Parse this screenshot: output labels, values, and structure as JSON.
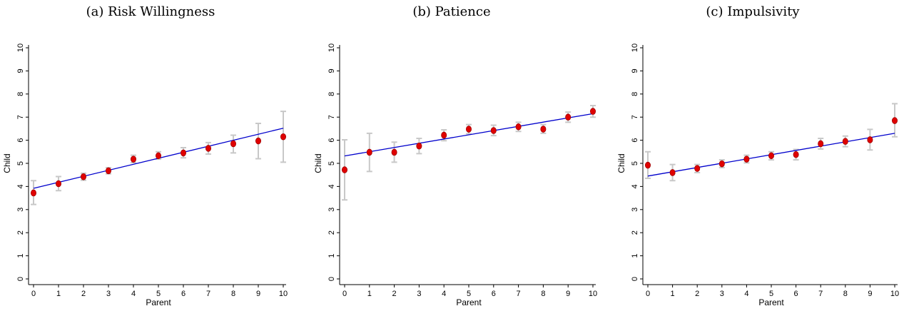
{
  "chart_data": [
    {
      "type": "scatter",
      "title": "(a) Risk Willingness",
      "xlabel": "Parent",
      "ylabel": "Child",
      "xlim": [
        0,
        10
      ],
      "ylim": [
        0,
        10
      ],
      "xticks": [
        0,
        1,
        2,
        3,
        4,
        5,
        6,
        7,
        8,
        9,
        10
      ],
      "yticks": [
        0,
        1,
        2,
        3,
        4,
        5,
        6,
        7,
        8,
        9,
        10
      ],
      "grid": false,
      "x": [
        0,
        1,
        2,
        3,
        4,
        5,
        6,
        7,
        8,
        9,
        10
      ],
      "y": [
        3.72,
        4.12,
        4.42,
        4.68,
        5.18,
        5.33,
        5.45,
        5.65,
        5.85,
        5.97,
        6.15
      ],
      "ci_low": [
        3.22,
        3.82,
        4.27,
        4.55,
        5.03,
        5.18,
        5.24,
        5.4,
        5.45,
        5.2,
        5.05
      ],
      "ci_high": [
        4.25,
        4.43,
        4.57,
        4.81,
        5.35,
        5.5,
        5.68,
        5.9,
        6.22,
        6.73,
        7.25
      ],
      "fit_line": {
        "x": [
          0,
          10
        ],
        "y": [
          3.92,
          6.52
        ]
      },
      "colors": {
        "points": "#e00000",
        "fit": "#0000cc",
        "errorbars": "#c8c8c8"
      }
    },
    {
      "type": "scatter",
      "title": "(b) Patience",
      "xlabel": "Parent",
      "ylabel": "Child",
      "xlim": [
        0,
        10
      ],
      "ylim": [
        0,
        10
      ],
      "xticks": [
        0,
        1,
        2,
        3,
        4,
        5,
        6,
        7,
        8,
        9,
        10
      ],
      "yticks": [
        0,
        1,
        2,
        3,
        4,
        5,
        6,
        7,
        8,
        9,
        10
      ],
      "grid": false,
      "x": [
        0,
        1,
        2,
        3,
        4,
        5,
        6,
        7,
        8,
        9,
        10
      ],
      "y": [
        4.72,
        5.48,
        5.48,
        5.75,
        6.22,
        6.48,
        6.42,
        6.58,
        6.48,
        7.0,
        7.25
      ],
      "ci_low": [
        3.42,
        4.65,
        5.05,
        5.42,
        5.98,
        6.28,
        6.2,
        6.38,
        6.3,
        6.78,
        7.0
      ],
      "ci_high": [
        6.02,
        6.3,
        5.92,
        6.08,
        6.45,
        6.68,
        6.65,
        6.78,
        6.68,
        7.22,
        7.5
      ],
      "fit_line": {
        "x": [
          0,
          10
        ],
        "y": [
          5.32,
          7.15
        ]
      },
      "colors": {
        "points": "#e00000",
        "fit": "#0000cc",
        "errorbars": "#c8c8c8"
      }
    },
    {
      "type": "scatter",
      "title": "(c) Impulsivity",
      "xlabel": "Parent",
      "ylabel": "Child",
      "xlim": [
        0,
        10
      ],
      "ylim": [
        0,
        10
      ],
      "xticks": [
        0,
        1,
        2,
        3,
        4,
        5,
        6,
        7,
        8,
        9,
        10
      ],
      "yticks": [
        0,
        1,
        2,
        3,
        4,
        5,
        6,
        7,
        8,
        9,
        10
      ],
      "grid": false,
      "x": [
        0,
        1,
        2,
        3,
        4,
        5,
        6,
        7,
        8,
        9,
        10
      ],
      "y": [
        4.92,
        4.6,
        4.78,
        4.98,
        5.18,
        5.33,
        5.38,
        5.85,
        5.95,
        6.02,
        6.85
      ],
      "ci_low": [
        4.35,
        4.25,
        4.6,
        4.82,
        5.02,
        5.15,
        5.15,
        5.62,
        5.72,
        5.58,
        6.15
      ],
      "ci_high": [
        5.5,
        4.95,
        4.95,
        5.15,
        5.35,
        5.5,
        5.6,
        6.08,
        6.18,
        6.47,
        7.58
      ],
      "fit_line": {
        "x": [
          0,
          10
        ],
        "y": [
          4.45,
          6.3
        ]
      },
      "colors": {
        "points": "#e00000",
        "fit": "#0000cc",
        "errorbars": "#c8c8c8"
      }
    }
  ]
}
